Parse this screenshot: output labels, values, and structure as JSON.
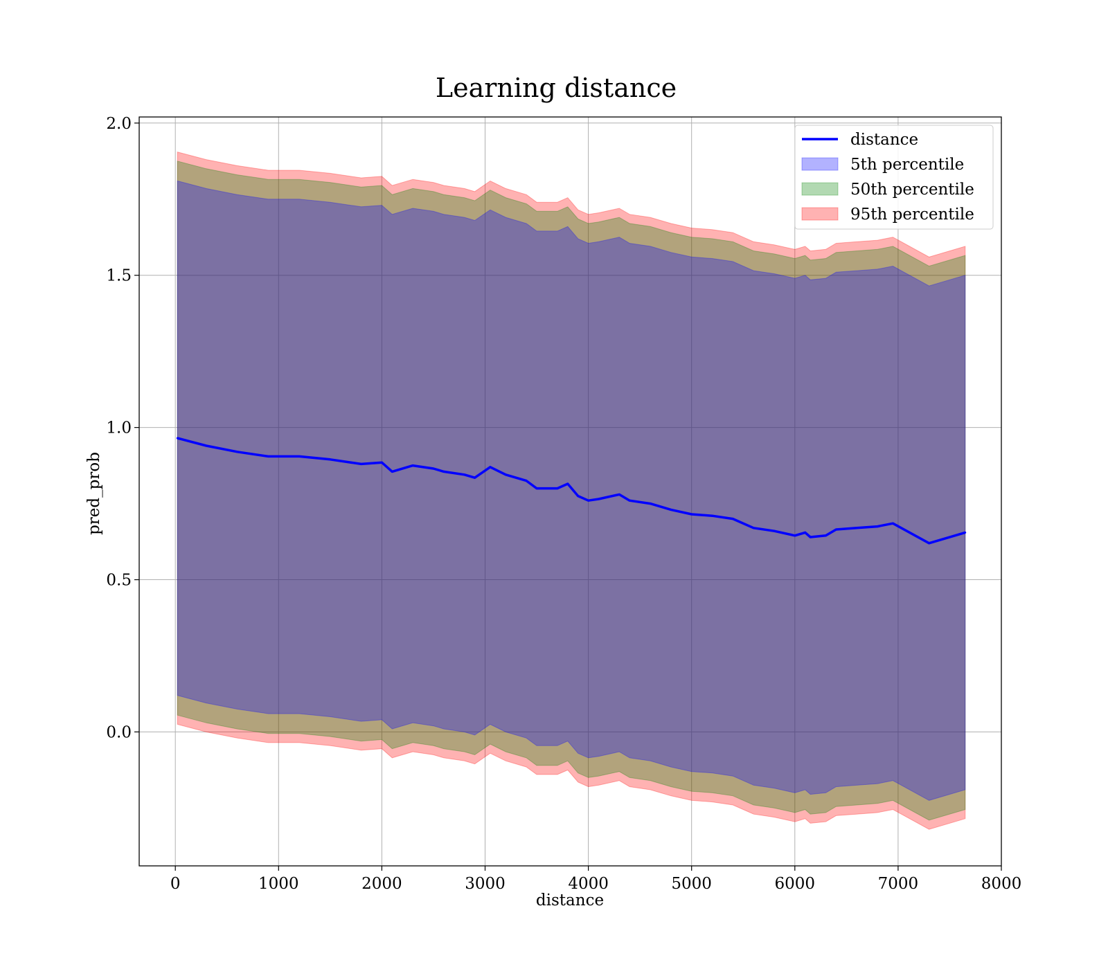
{
  "chart_data": {
    "type": "area",
    "title": "Learning distance",
    "xlabel": "distance",
    "ylabel": "pred_prob",
    "xlim": [
      -350,
      8000
    ],
    "ylim": [
      -0.44,
      2.02
    ],
    "xticks": [
      0,
      1000,
      2000,
      3000,
      4000,
      5000,
      6000,
      7000,
      8000
    ],
    "yticks": [
      0.0,
      0.5,
      1.0,
      1.5,
      2.0
    ],
    "xtick_labels": [
      "0",
      "1000",
      "2000",
      "3000",
      "4000",
      "5000",
      "6000",
      "7000",
      "8000"
    ],
    "ytick_labels": [
      "0.0",
      "0.5",
      "1.0",
      "1.5",
      "2.0"
    ],
    "grid": true,
    "legend_position": "top-right",
    "legend": [
      {
        "label": "distance",
        "kind": "line",
        "color": "#0000ff"
      },
      {
        "label": "5th percentile",
        "kind": "band",
        "color": "#0000ff"
      },
      {
        "label": "50th percentile",
        "kind": "band",
        "color": "#008000"
      },
      {
        "label": "95th percentile",
        "kind": "band",
        "color": "#ff0000"
      }
    ],
    "colors": {
      "line": "#0000ff",
      "p5": "#0000ff",
      "p50": "#008000",
      "p95": "#ff0000"
    },
    "x": [
      20,
      300,
      600,
      900,
      1200,
      1500,
      1800,
      2000,
      2100,
      2300,
      2500,
      2600,
      2800,
      2900,
      3050,
      3200,
      3400,
      3500,
      3700,
      3800,
      3900,
      4000,
      4100,
      4300,
      4400,
      4600,
      4800,
      5000,
      5200,
      5400,
      5600,
      5800,
      6000,
      6100,
      6150,
      6300,
      6400,
      6600,
      6800,
      6950,
      7300,
      7650
    ],
    "series": [
      {
        "name": "distance",
        "values": [
          0.965,
          0.94,
          0.92,
          0.905,
          0.905,
          0.895,
          0.88,
          0.885,
          0.855,
          0.875,
          0.865,
          0.855,
          0.845,
          0.835,
          0.87,
          0.845,
          0.825,
          0.8,
          0.8,
          0.815,
          0.775,
          0.76,
          0.765,
          0.78,
          0.76,
          0.75,
          0.73,
          0.715,
          0.71,
          0.7,
          0.67,
          0.66,
          0.645,
          0.655,
          0.64,
          0.645,
          0.665,
          0.67,
          0.675,
          0.685,
          0.62,
          0.655
        ]
      }
    ],
    "band_half_widths": {
      "5th percentile": 0.845,
      "50th percentile": 0.91,
      "95th percentile": 0.94
    }
  }
}
